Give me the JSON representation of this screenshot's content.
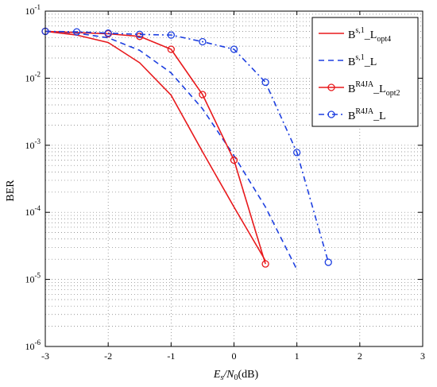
{
  "chart_data": {
    "type": "line",
    "title": "",
    "xlabel": {
      "pre": "E",
      "sub": "s",
      "mid": "/N",
      "sub2": "0",
      "post": "(dB)"
    },
    "ylabel": "BER",
    "xlim": [
      -3,
      3
    ],
    "ylim": [
      1e-06,
      0.1
    ],
    "yscale": "log",
    "grid": true,
    "legend_position": "top-right",
    "x_ticks": [
      "-3",
      "-2",
      "-1",
      "0",
      "1",
      "2",
      "3"
    ],
    "y_ticks": [
      {
        "base": "10",
        "exp": "-6"
      },
      {
        "base": "10",
        "exp": "-5"
      },
      {
        "base": "10",
        "exp": "-4"
      },
      {
        "base": "10",
        "exp": "-3"
      },
      {
        "base": "10",
        "exp": "-2"
      },
      {
        "base": "10",
        "exp": "-1"
      }
    ],
    "series": [
      {
        "name": {
          "base": "B",
          "sup": "s,1",
          "mid": "_L",
          "sub": "opt4"
        },
        "color": "#e8191c",
        "dash": "solid",
        "marker": "none",
        "x": [
          -3,
          -2.5,
          -2,
          -1.5,
          -1,
          -0.5,
          0,
          0.5
        ],
        "y": [
          0.05,
          0.044,
          0.034,
          0.017,
          0.0056,
          0.0008,
          0.00012,
          1.9e-05
        ]
      },
      {
        "name": {
          "base": "B",
          "sup": "s,1",
          "mid": "_L",
          "sub": ""
        },
        "color": "#1d3fe0",
        "dash": "dashed",
        "marker": "none",
        "x": [
          -3,
          -2.5,
          -2,
          -1.5,
          -1,
          -0.5,
          0,
          0.5,
          1
        ],
        "y": [
          0.05,
          0.047,
          0.04,
          0.026,
          0.012,
          0.0035,
          0.0007,
          0.00012,
          1.4e-05
        ]
      },
      {
        "name": {
          "base": "B",
          "sup": "R4JA",
          "mid": "_L",
          "sub": "opt2"
        },
        "color": "#e8191c",
        "dash": "solid",
        "marker": "circle",
        "x": [
          -3,
          -2,
          -1.5,
          -1,
          -0.5,
          0,
          0.5
        ],
        "y": [
          0.05,
          0.046,
          0.042,
          0.027,
          0.0057,
          0.0006,
          1.7e-05
        ]
      },
      {
        "name": {
          "base": "B",
          "sup": "R4JA",
          "mid": "_L",
          "sub": ""
        },
        "color": "#1d3fe0",
        "dash": "dashdot",
        "marker": "circle",
        "x": [
          -3,
          -2.5,
          -2,
          -1.5,
          -1,
          -0.5,
          0,
          0.5,
          1,
          1.5
        ],
        "y": [
          0.05,
          0.049,
          0.047,
          0.045,
          0.044,
          0.035,
          0.027,
          0.0087,
          0.00078,
          1.8e-05
        ]
      }
    ]
  }
}
